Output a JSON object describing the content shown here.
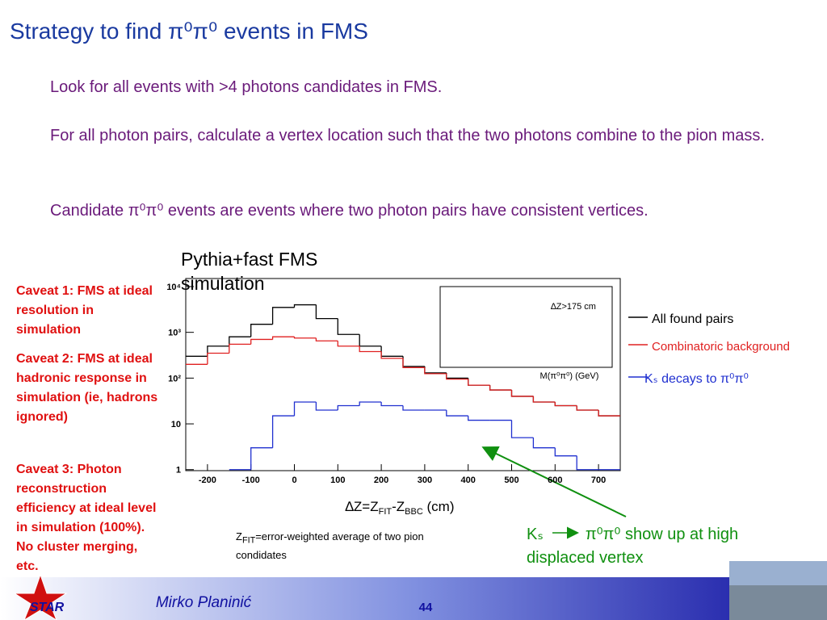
{
  "title": "Strategy to find π⁰π⁰ events in FMS",
  "bullets": [
    "Look for all events with >4 photons candidates in FMS.",
    "For all photon pairs, calculate a vertex location such that the two photons combine to the pion mass.",
    "Candidate π⁰π⁰ events are events where two photon pairs have consistent vertices."
  ],
  "plot_caption": "Pythia+fast FMS simulation",
  "caveats": [
    "Caveat 1: FMS at ideal resolution in simulation",
    "Caveat 2: FMS at ideal hadronic response in simulation (ie, hadrons ignored)",
    "Caveat 3: Photon reconstruction efficiency at ideal level in simulation (100%). No cluster merging, etc."
  ],
  "chart_data": {
    "type": "histogram",
    "bins": [
      -250,
      -200,
      -150,
      -100,
      -50,
      0,
      50,
      100,
      150,
      200,
      250,
      300,
      350,
      400,
      450,
      500,
      550,
      600,
      650,
      700,
      750
    ],
    "series": [
      {
        "name": "All found pairs",
        "color": "#000000",
        "values": [
          300,
          500,
          800,
          1500,
          3500,
          4000,
          2000,
          900,
          500,
          300,
          180,
          130,
          100,
          70,
          55,
          40,
          30,
          25,
          20,
          15
        ]
      },
      {
        "name": "Combinatoric background",
        "color": "#e02020",
        "values": [
          200,
          350,
          550,
          700,
          800,
          750,
          650,
          500,
          380,
          270,
          170,
          125,
          95,
          70,
          55,
          40,
          30,
          25,
          20,
          15
        ]
      },
      {
        "name": "Kₛ decays to π⁰π⁰",
        "color": "#2030d0",
        "values": [
          null,
          null,
          1,
          3,
          15,
          30,
          20,
          25,
          30,
          25,
          20,
          20,
          15,
          12,
          12,
          5,
          3,
          2,
          1,
          1
        ]
      }
    ],
    "xlim": [
      -250,
      750
    ],
    "xticks": [
      -200,
      -100,
      0,
      100,
      200,
      300,
      400,
      500,
      600,
      700
    ],
    "ylim": [
      0.95,
      15000
    ],
    "log_y": true,
    "yticks": [
      1,
      10,
      {
        "value": 100,
        "label": "10²"
      },
      {
        "value": 1000,
        "label": "10³"
      },
      {
        "value": 10000,
        "label": "10⁴"
      }
    ],
    "x_label_parts": [
      "∆Z=Z",
      "FIT",
      "-Z",
      "BBC",
      " (cm)"
    ],
    "inset_label": "∆Z>175 cm",
    "inset_x_label": "M(π⁰π⁰) (GeV)"
  },
  "note_parts": [
    "Z",
    "FIT",
    "=error-weighted average of two pion condidates"
  ],
  "annotation": [
    "Kₛ",
    "π⁰π⁰ show up at high",
    "displaced vertex"
  ],
  "footer": {
    "logo": "STAR",
    "author": "Mirko Planinić",
    "page": "44"
  }
}
